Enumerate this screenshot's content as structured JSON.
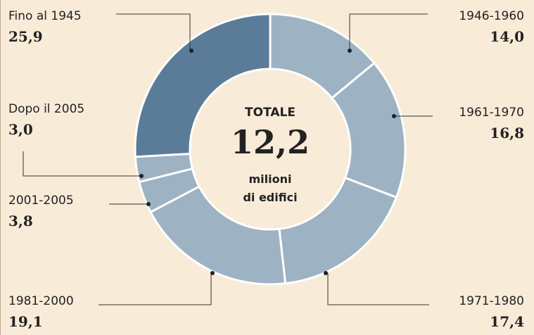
{
  "chart_data": {
    "type": "donut",
    "categories": [
      "1946-1960",
      "1961-1970",
      "1971-1980",
      "1981-2000",
      "2001-2005",
      "Dopo il 2005",
      "Fino al 1945"
    ],
    "values": [
      14.0,
      16.8,
      17.4,
      19.1,
      3.8,
      3.0,
      25.9
    ],
    "value_labels": [
      "14,0",
      "16,8",
      "17,4",
      "19,1",
      "3,8",
      "3,0",
      "25,9"
    ],
    "colors": [
      "#9db3c3",
      "#9db3c3",
      "#9db3c3",
      "#9db3c3",
      "#9db3c3",
      "#9db3c3",
      "#5a7c99"
    ],
    "center_title": "TOTALE",
    "center_value": "12,2",
    "center_text": [
      "milioni",
      "di edifici"
    ]
  }
}
